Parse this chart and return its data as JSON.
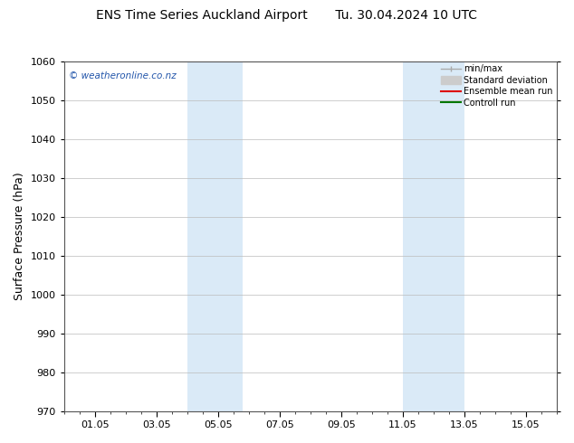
{
  "title": "ENS Time Series Auckland Airport",
  "title2": "Tu. 30.04.2024 10 UTC",
  "ylabel": "Surface Pressure (hPa)",
  "ylim": [
    970,
    1060
  ],
  "yticks": [
    970,
    980,
    990,
    1000,
    1010,
    1020,
    1030,
    1040,
    1050,
    1060
  ],
  "xtick_labels": [
    "01.05",
    "03.05",
    "05.05",
    "07.05",
    "09.05",
    "11.05",
    "13.05",
    "15.05"
  ],
  "xtick_positions": [
    1,
    3,
    5,
    7,
    9,
    11,
    13,
    15
  ],
  "xlim": [
    0,
    16
  ],
  "shaded_bands": [
    {
      "x_start": 4.0,
      "x_end": 5.8
    },
    {
      "x_start": 11.0,
      "x_end": 13.0
    }
  ],
  "shaded_color": "#daeaf7",
  "watermark_text": "© weatheronline.co.nz",
  "watermark_color": "#2255aa",
  "legend_entries": [
    {
      "label": "min/max",
      "color": "#aaaaaa",
      "lw": 1.0
    },
    {
      "label": "Standard deviation",
      "color": "#cccccc",
      "lw": 6
    },
    {
      "label": "Ensemble mean run",
      "color": "#dd0000",
      "lw": 1.5
    },
    {
      "label": "Controll run",
      "color": "#007700",
      "lw": 1.5
    }
  ],
  "bg_color": "#ffffff",
  "grid_color": "#bbbbbb",
  "spine_color": "#555555",
  "font_size": 8,
  "title_font_size": 10,
  "figsize": [
    6.34,
    4.9
  ],
  "dpi": 100
}
